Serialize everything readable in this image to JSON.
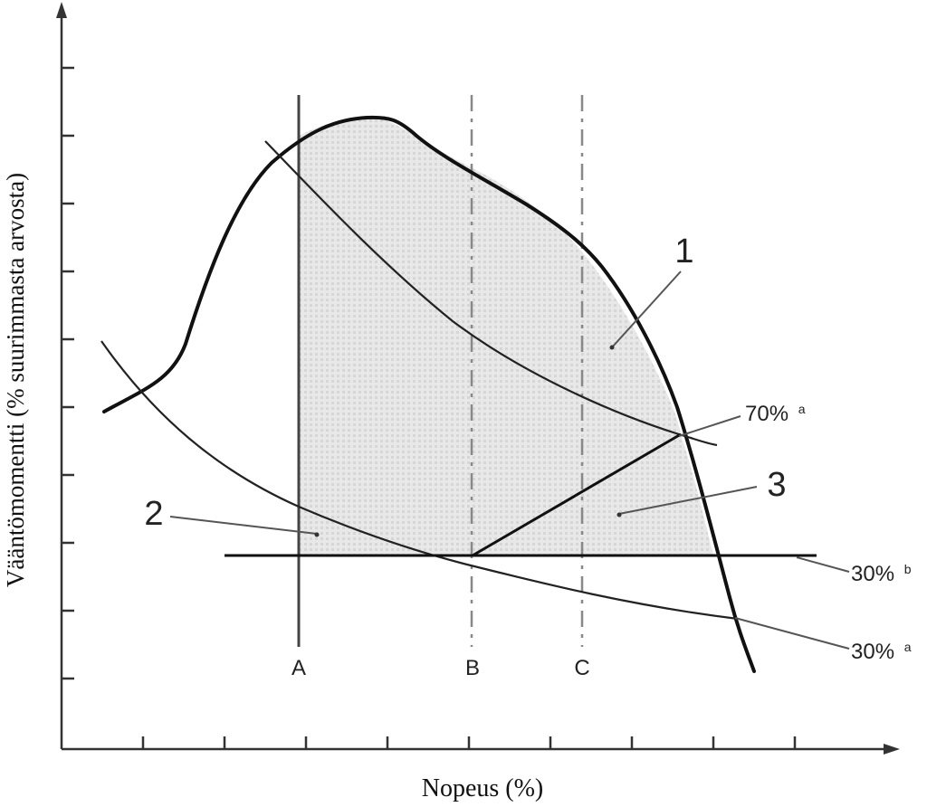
{
  "axes": {
    "y_label": "Vääntömomentti (% suurimmasta arvosta)",
    "x_label": "Nopeus (%)"
  },
  "speed_markers": [
    "A",
    "B",
    "C"
  ],
  "region_labels": {
    "r1": "1",
    "r2": "2",
    "r3": "3"
  },
  "curve_labels": {
    "p70a_main": "70%",
    "p70a_sup": "a",
    "p30b_main": "30%",
    "p30b_sup": "b",
    "p30a_main": "30%",
    "p30a_sup": "a"
  },
  "colors": {
    "line": "#111111",
    "shade": "#e2e2e2",
    "dashed": "#888888"
  }
}
